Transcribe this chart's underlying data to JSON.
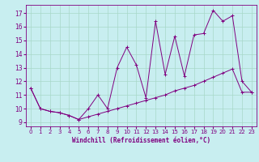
{
  "xlabel": "Windchill (Refroidissement éolien,°C)",
  "bg_color": "#c8eef0",
  "line_color": "#800080",
  "grid_color": "#a8d8c8",
  "x_jagged": [
    0,
    1,
    2,
    3,
    4,
    5,
    6,
    7,
    8,
    9,
    10,
    11,
    12,
    13,
    14,
    15,
    16,
    17,
    18,
    19,
    20,
    21,
    22,
    23
  ],
  "y_jagged": [
    11.5,
    10.0,
    9.8,
    9.7,
    9.5,
    9.2,
    10.0,
    11.0,
    10.0,
    13.0,
    14.5,
    13.2,
    10.8,
    16.4,
    12.5,
    15.3,
    12.4,
    15.4,
    15.5,
    17.2,
    16.4,
    16.8,
    12.0,
    11.2
  ],
  "x_trend": [
    0,
    1,
    2,
    3,
    4,
    5,
    6,
    7,
    8,
    9,
    10,
    11,
    12,
    13,
    14,
    15,
    16,
    17,
    18,
    19,
    20,
    21,
    22,
    23
  ],
  "y_trend": [
    11.5,
    10.0,
    9.8,
    9.7,
    9.5,
    9.2,
    9.4,
    9.6,
    9.8,
    10.0,
    10.2,
    10.4,
    10.6,
    10.8,
    11.0,
    11.3,
    11.5,
    11.7,
    12.0,
    12.3,
    12.6,
    12.9,
    11.2,
    11.2
  ],
  "xlim": [
    -0.5,
    23.5
  ],
  "ylim": [
    8.7,
    17.6
  ],
  "yticks": [
    9,
    10,
    11,
    12,
    13,
    14,
    15,
    16,
    17
  ],
  "xticks": [
    0,
    1,
    2,
    3,
    4,
    5,
    6,
    7,
    8,
    9,
    10,
    11,
    12,
    13,
    14,
    15,
    16,
    17,
    18,
    19,
    20,
    21,
    22,
    23
  ],
  "tick_fontsize": 5.0,
  "xlabel_fontsize": 5.5
}
